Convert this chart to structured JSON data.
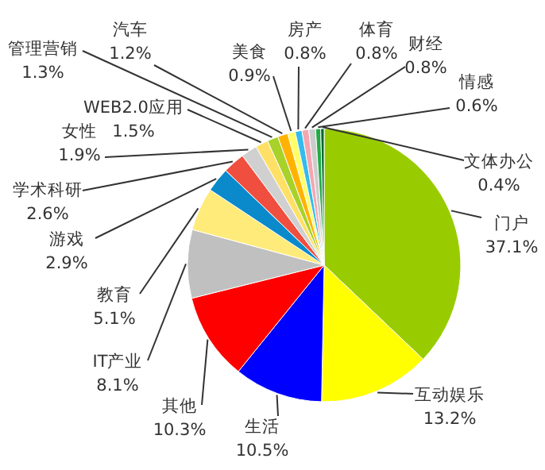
{
  "chart_data": {
    "type": "pie",
    "categories": [
      "门户",
      "互动娱乐",
      "生活",
      "其他",
      "IT产业",
      "教育",
      "游戏",
      "学术科研",
      "女性",
      "WEB2.0应用",
      "管理营销",
      "汽车",
      "美食",
      "房产",
      "体育",
      "财经",
      "情感",
      "文体办公"
    ],
    "values": [
      37.1,
      13.2,
      10.5,
      10.3,
      8.1,
      5.1,
      2.9,
      2.6,
      1.9,
      1.5,
      1.3,
      1.2,
      0.9,
      0.8,
      0.8,
      0.8,
      0.6,
      0.4
    ],
    "value_labels": [
      "37.1%",
      "13.2%",
      "10.5%",
      "10.3%",
      "8.1%",
      "5.1%",
      "2.9%",
      "2.6%",
      "1.9%",
      "1.5%",
      "1.3%",
      "1.2%",
      "0.9%",
      "0.8%",
      "0.8%",
      "0.8%",
      "0.6%",
      "0.4%"
    ],
    "colors": [
      "#99cc00",
      "#ffff00",
      "#0000ff",
      "#ff0000",
      "#c0c0c0",
      "#ffeb7a",
      "#0a8acb",
      "#f04e3e",
      "#d0d0d0",
      "#ffe066",
      "#a8d12a",
      "#ffb300",
      "#ffff66",
      "#33bbee",
      "#f4a6b0",
      "#cccccc",
      "#22aa44",
      "#006633"
    ],
    "legend": false
  }
}
